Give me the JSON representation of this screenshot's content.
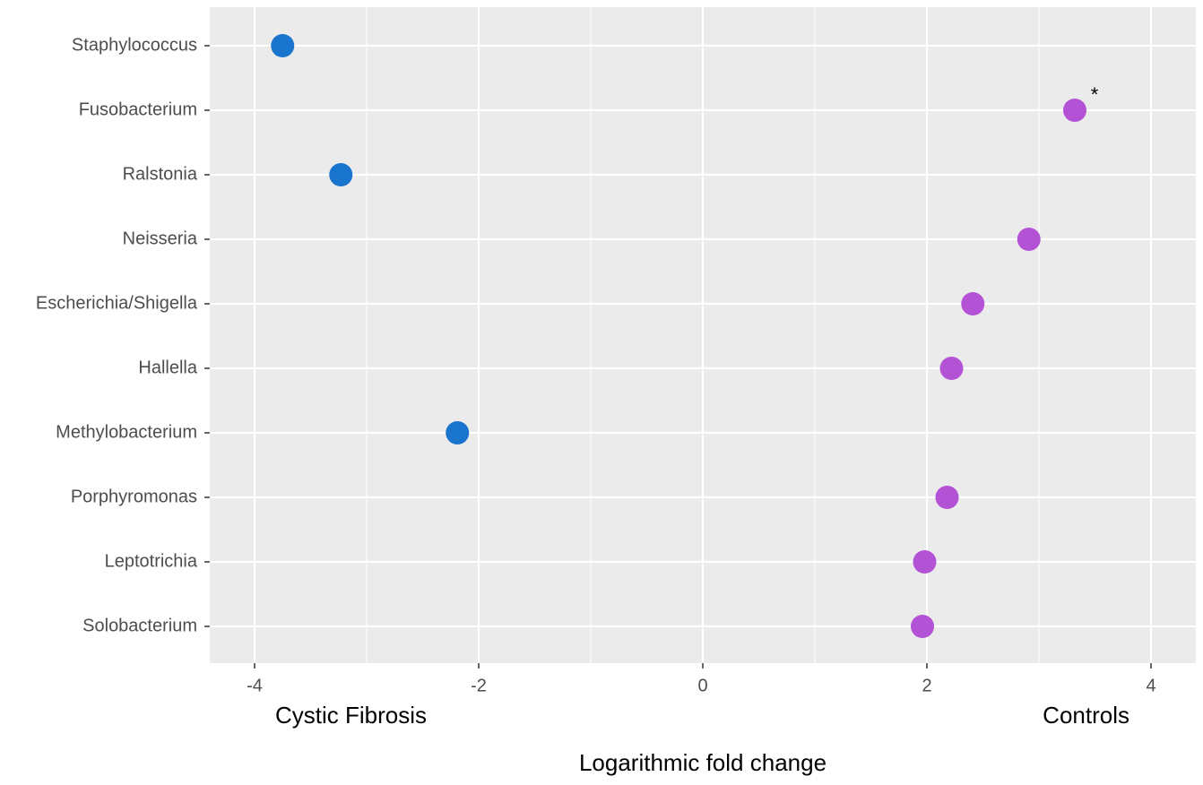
{
  "chart_data": {
    "type": "dot",
    "x_label": "Logarithmic fold change",
    "categories": [
      "Staphylococcus",
      "Fusobacterium",
      "Ralstonia",
      "Neisseria",
      "Escherichia/Shigella",
      "Hallella",
      "Methylobacterium",
      "Porphyromonas",
      "Leptotrichia",
      "Solobacterium"
    ],
    "series": [
      {
        "name": "Cystic Fibrosis",
        "color": "#1874cd",
        "values": [
          -3.75,
          null,
          -3.23,
          null,
          null,
          null,
          -2.19,
          null,
          null,
          null
        ]
      },
      {
        "name": "Controls",
        "color": "#b452d6",
        "values": [
          null,
          3.32,
          null,
          2.91,
          2.41,
          2.22,
          null,
          2.18,
          1.98,
          1.96
        ]
      }
    ],
    "xlim": [
      -4.4,
      4.4
    ],
    "xticks": [
      -4,
      -2,
      0,
      2,
      4
    ],
    "xminorticks": [
      -3,
      -1,
      1,
      3
    ],
    "grid": true,
    "annotations": [
      {
        "text": "*",
        "category": "Fusobacterium"
      }
    ]
  }
}
